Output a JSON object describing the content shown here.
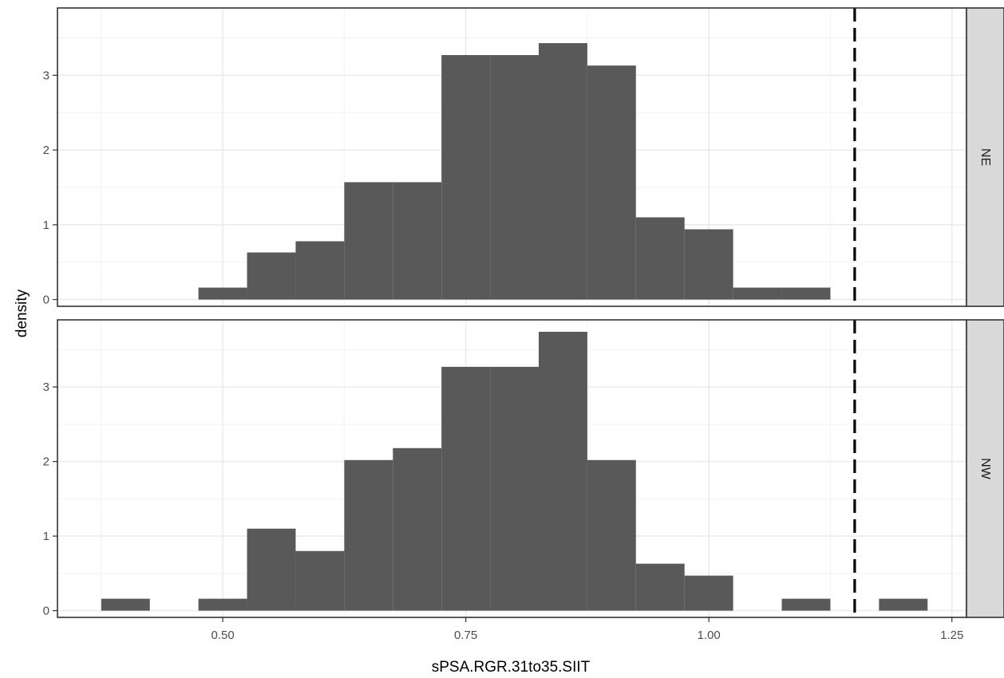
{
  "chart_data": {
    "type": "histogram",
    "xlabel": "sPSA.RGR.31to35.SIIT",
    "ylabel": "density",
    "xlim": [
      0.33,
      1.265
    ],
    "ylim": [
      -0.09,
      3.9
    ],
    "x_ticks": [
      0.5,
      0.75,
      1.0,
      1.25
    ],
    "x_tick_labels": [
      "0.50",
      "0.75",
      "1.00",
      "1.25"
    ],
    "y_ticks": [
      0,
      1,
      2,
      3
    ],
    "y_tick_labels": [
      "0",
      "1",
      "2",
      "3"
    ],
    "bin_width": 0.05,
    "reference_line": {
      "x": 1.15,
      "style": "dashed",
      "color": "#000000"
    },
    "bar_color": "#595959",
    "grid": true,
    "facet": "rows",
    "panels": [
      {
        "label": "NE",
        "bins": [
          {
            "x0": 0.475,
            "x1": 0.525,
            "density": 0.16
          },
          {
            "x0": 0.525,
            "x1": 0.575,
            "density": 0.63
          },
          {
            "x0": 0.575,
            "x1": 0.625,
            "density": 0.78
          },
          {
            "x0": 0.625,
            "x1": 0.675,
            "density": 1.57
          },
          {
            "x0": 0.675,
            "x1": 0.725,
            "density": 1.57
          },
          {
            "x0": 0.725,
            "x1": 0.775,
            "density": 3.27
          },
          {
            "x0": 0.775,
            "x1": 0.825,
            "density": 3.27
          },
          {
            "x0": 0.825,
            "x1": 0.875,
            "density": 3.43
          },
          {
            "x0": 0.875,
            "x1": 0.925,
            "density": 3.13
          },
          {
            "x0": 0.925,
            "x1": 0.975,
            "density": 1.1
          },
          {
            "x0": 0.975,
            "x1": 1.025,
            "density": 0.94
          },
          {
            "x0": 1.025,
            "x1": 1.075,
            "density": 0.16
          },
          {
            "x0": 1.075,
            "x1": 1.125,
            "density": 0.16
          }
        ]
      },
      {
        "label": "NW",
        "bins": [
          {
            "x0": 0.375,
            "x1": 0.425,
            "density": 0.16
          },
          {
            "x0": 0.475,
            "x1": 0.525,
            "density": 0.16
          },
          {
            "x0": 0.525,
            "x1": 0.575,
            "density": 1.1
          },
          {
            "x0": 0.575,
            "x1": 0.625,
            "density": 0.8
          },
          {
            "x0": 0.625,
            "x1": 0.675,
            "density": 2.02
          },
          {
            "x0": 0.675,
            "x1": 0.725,
            "density": 2.18
          },
          {
            "x0": 0.725,
            "x1": 0.775,
            "density": 3.27
          },
          {
            "x0": 0.775,
            "x1": 0.825,
            "density": 3.27
          },
          {
            "x0": 0.825,
            "x1": 0.875,
            "density": 3.74
          },
          {
            "x0": 0.875,
            "x1": 0.925,
            "density": 2.02
          },
          {
            "x0": 0.925,
            "x1": 0.975,
            "density": 0.63
          },
          {
            "x0": 0.975,
            "x1": 1.025,
            "density": 0.47
          },
          {
            "x0": 1.075,
            "x1": 1.125,
            "density": 0.16
          },
          {
            "x0": 1.175,
            "x1": 1.225,
            "density": 0.16
          }
        ]
      }
    ]
  }
}
